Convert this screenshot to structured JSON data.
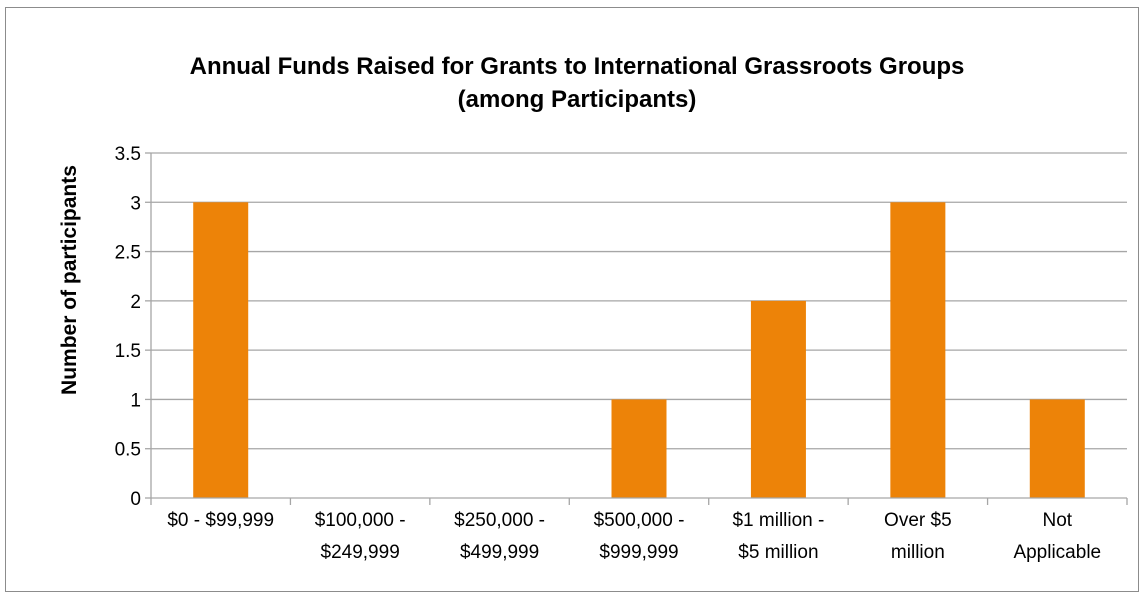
{
  "chart_data": {
    "type": "bar",
    "title_lines": [
      "Annual Funds Raised for Grants to International Grassroots Groups",
      "(among Participants)"
    ],
    "xlabel": "",
    "ylabel": "Number of participants",
    "categories": [
      "$0 - $99,999",
      "$100,000 - $249,999",
      "$250,000 - $499,999",
      "$500,000 - $999,999",
      "$1 million - $5 million",
      "Over $5 million",
      "Not Applicable"
    ],
    "category_label_lines": [
      [
        "$0 - $99,999"
      ],
      [
        "$100,000 -",
        "$249,999"
      ],
      [
        "$250,000 -",
        "$499,999"
      ],
      [
        "$500,000 -",
        "$999,999"
      ],
      [
        "$1 million -",
        "$5 million"
      ],
      [
        "Over $5",
        "million"
      ],
      [
        "Not",
        "Applicable"
      ]
    ],
    "values": [
      3,
      0,
      0,
      1,
      2,
      3,
      1
    ],
    "ylim": [
      0,
      3.5
    ],
    "yticks": [
      "0",
      "0.5",
      "1",
      "1.5",
      "2",
      "2.5",
      "3",
      "3.5"
    ],
    "grid": true,
    "legend": "none",
    "bar_color": "#ED8308",
    "grid_color": "#A6A6A6"
  }
}
